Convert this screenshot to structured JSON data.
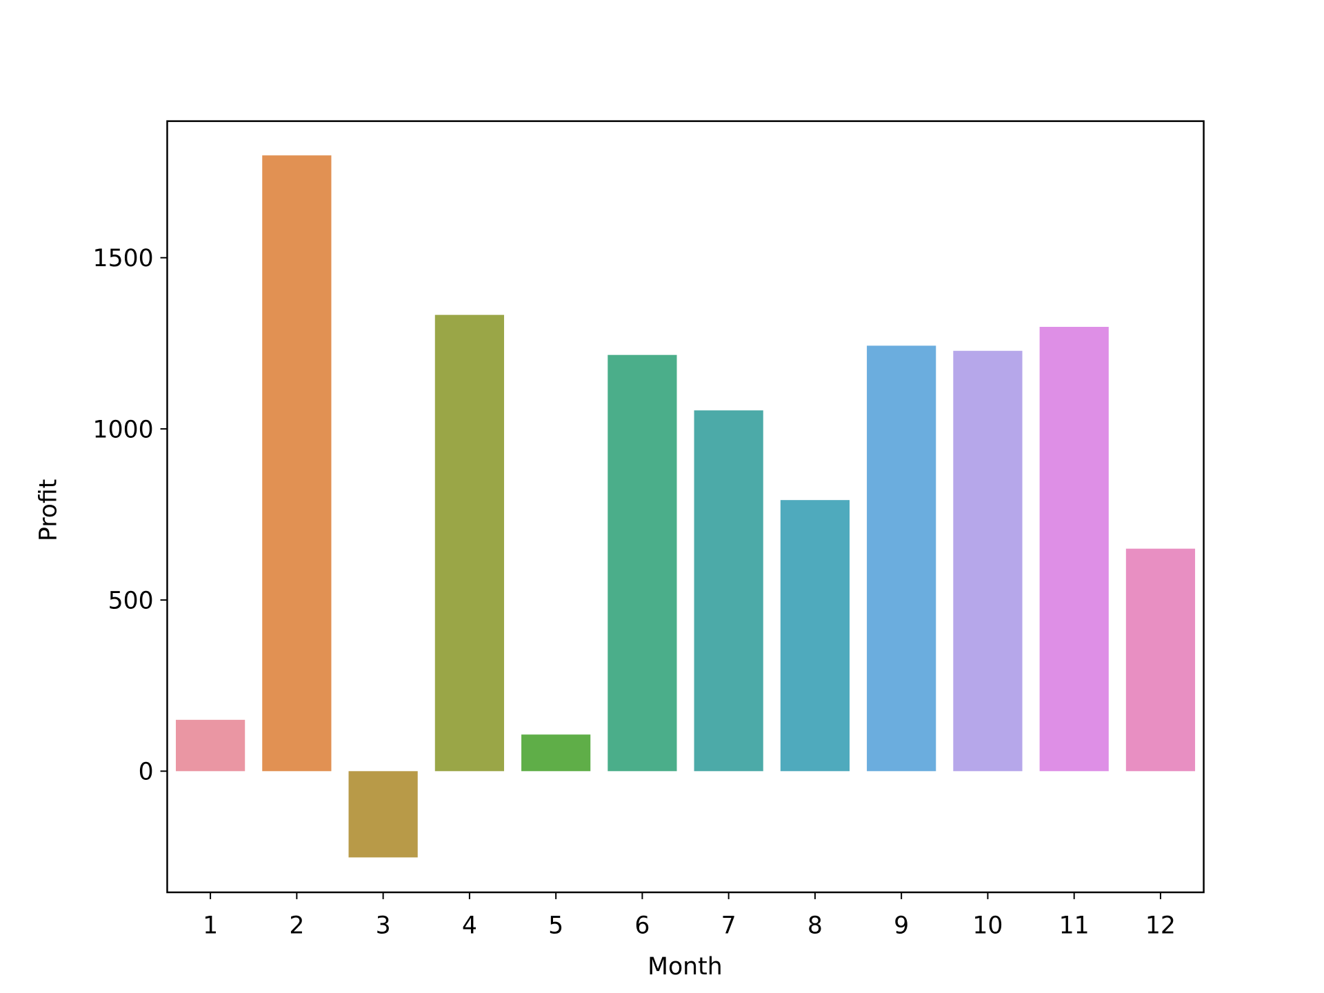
{
  "chart_data": {
    "type": "bar",
    "title": "",
    "xlabel": "Month",
    "ylabel": "Profit",
    "categories": [
      "1",
      "2",
      "3",
      "4",
      "5",
      "6",
      "7",
      "8",
      "9",
      "10",
      "11",
      "12"
    ],
    "values": [
      150,
      1799,
      -252,
      1333,
      107,
      1216,
      1054,
      792,
      1243,
      1228,
      1298,
      650
    ],
    "colors": [
      "#ea96a3",
      "#e19153",
      "#b89a48",
      "#9aa647",
      "#5fae48",
      "#4bae8a",
      "#4caaa8",
      "#4faabd",
      "#6badde",
      "#b6a7ea",
      "#de8fe6",
      "#e88fc2"
    ],
    "ylim": [
      -354,
      1899
    ],
    "yticks": [
      0,
      500,
      1000,
      1500
    ],
    "grid": false,
    "legend": "none"
  }
}
